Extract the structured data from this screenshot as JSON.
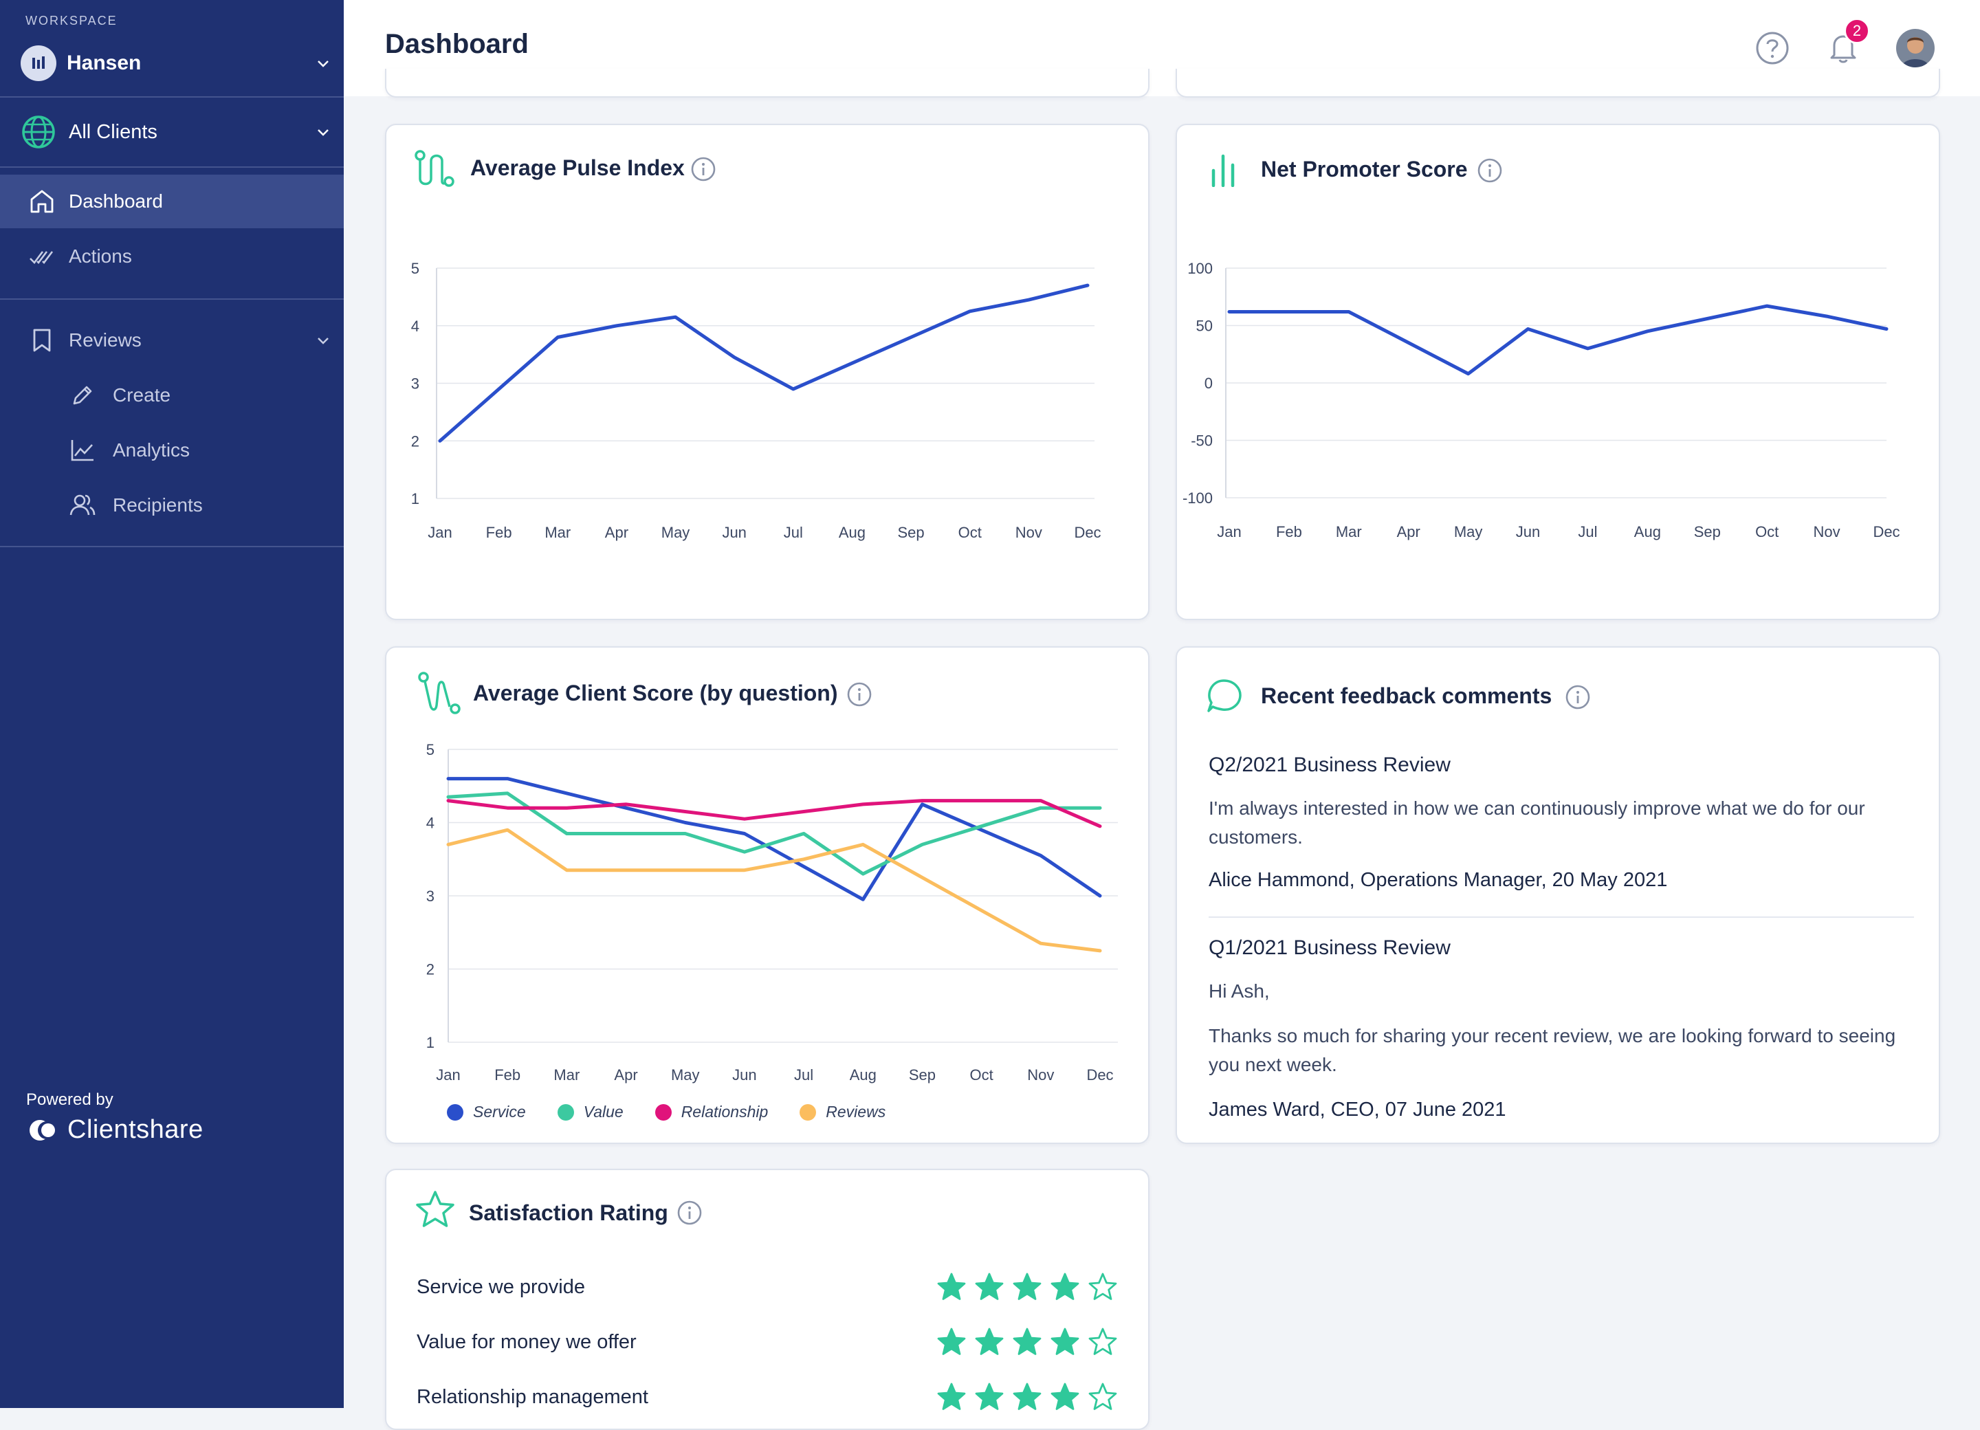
{
  "workspace": {
    "label": "WORKSPACE",
    "name": "Hansen"
  },
  "clients": {
    "label": "All Clients"
  },
  "nav": {
    "dashboard": "Dashboard",
    "actions": "Actions",
    "reviews": "Reviews",
    "create": "Create",
    "analytics": "Analytics",
    "recipients": "Recipients"
  },
  "footer": {
    "powered_by": "Powered by",
    "brand": "Clientshare"
  },
  "header": {
    "title": "Dashboard",
    "notification_count": "2"
  },
  "colors": {
    "sidebar": "#1f3172",
    "accent_green": "#2fc89a",
    "line_blue": "#2a4fcb",
    "teal": "#3cc9a0",
    "magenta": "#e0137b",
    "orange": "#fbbd5e",
    "badge": "#e2136e"
  },
  "cards": {
    "pulse": {
      "title": "Average Pulse Index"
    },
    "nps": {
      "title": "Net Promoter Score"
    },
    "client_score": {
      "title": "Average Client Score (by question)"
    },
    "feedback": {
      "title": "Recent feedback comments"
    },
    "satisfaction": {
      "title": "Satisfaction Rating"
    }
  },
  "chart_data": [
    {
      "type": "line",
      "title": "Average Pulse Index",
      "categories": [
        "Jan",
        "Feb",
        "Mar",
        "Apr",
        "May",
        "Jun",
        "Jul",
        "Aug",
        "Sep",
        "Oct",
        "Nov",
        "Dec"
      ],
      "series": [
        {
          "values": [
            2.0,
            2.9,
            3.8,
            4.0,
            4.15,
            3.45,
            2.9,
            3.35,
            3.8,
            4.25,
            4.45,
            4.7
          ],
          "color": "#2a4fcb"
        }
      ],
      "ylim": [
        1,
        5
      ],
      "yticks": [
        1,
        2,
        3,
        4,
        5
      ],
      "grid": true
    },
    {
      "type": "line",
      "title": "Net Promoter Score",
      "categories": [
        "Jan",
        "Feb",
        "Mar",
        "Apr",
        "May",
        "Jun",
        "Jul",
        "Aug",
        "Sep",
        "Oct",
        "Nov",
        "Dec"
      ],
      "series": [
        {
          "values": [
            62,
            62,
            62,
            35,
            8,
            47,
            30,
            45,
            56,
            67,
            58,
            47
          ],
          "color": "#2a4fcb"
        }
      ],
      "ylim": [
        -100,
        100
      ],
      "yticks": [
        -100,
        -50,
        0,
        50,
        100
      ],
      "grid": true
    },
    {
      "type": "line",
      "title": "Average Client Score (by question)",
      "categories": [
        "Jan",
        "Feb",
        "Mar",
        "Apr",
        "May",
        "Jun",
        "Jul",
        "Aug",
        "Sep",
        "Oct",
        "Nov",
        "Dec"
      ],
      "series": [
        {
          "name": "Service",
          "values": [
            4.6,
            4.6,
            4.4,
            4.2,
            4.0,
            3.85,
            3.4,
            2.95,
            4.25,
            3.9,
            3.55,
            3.0
          ],
          "color": "#2a4fcb"
        },
        {
          "name": "Value",
          "values": [
            4.35,
            4.4,
            3.85,
            3.85,
            3.85,
            3.6,
            3.85,
            3.3,
            3.7,
            3.95,
            4.2,
            4.2
          ],
          "color": "#3cc9a0"
        },
        {
          "name": "Relationship",
          "values": [
            4.3,
            4.2,
            4.2,
            4.25,
            4.15,
            4.05,
            4.15,
            4.25,
            4.3,
            4.3,
            4.3,
            3.95
          ],
          "color": "#e0137b"
        },
        {
          "name": "Reviews",
          "values": [
            3.7,
            3.9,
            3.35,
            3.35,
            3.35,
            3.35,
            3.5,
            3.7,
            3.25,
            2.8,
            2.35,
            2.25
          ],
          "color": "#fbbd5e"
        }
      ],
      "ylim": [
        1,
        5
      ],
      "yticks": [
        1,
        2,
        3,
        4,
        5
      ],
      "grid": true,
      "legend": "bottom-left"
    }
  ],
  "feedback": [
    {
      "title": "Q2/2021 Business Review",
      "paragraphs": [
        "I'm always interested in how we can continuously improve what we do for our customers."
      ],
      "author": "Alice Hammond, Operations Manager, 20 May 2021"
    },
    {
      "title": "Q1/2021 Business Review",
      "paragraphs": [
        "Hi Ash,",
        "Thanks so much for sharing your recent review, we are looking forward to seeing you next week."
      ],
      "author": "James Ward, CEO, 07 June 2021"
    }
  ],
  "satisfaction": [
    {
      "label": "Service we provide",
      "rating": 4,
      "max": 5
    },
    {
      "label": "Value for money we offer",
      "rating": 4,
      "max": 5
    },
    {
      "label": "Relationship management",
      "rating": 4,
      "max": 5
    }
  ]
}
